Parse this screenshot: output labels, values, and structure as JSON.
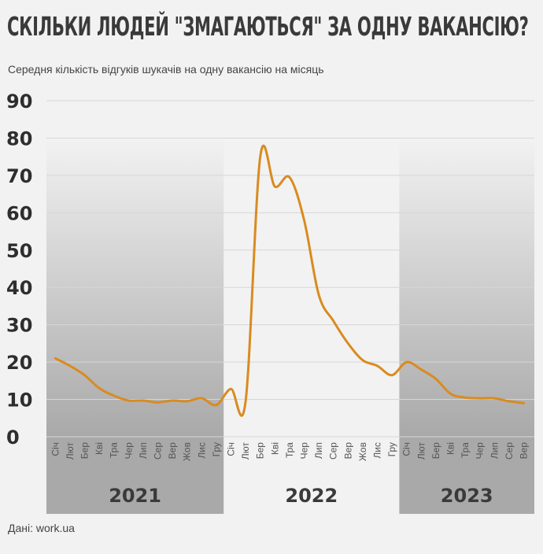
{
  "title": "СКІЛЬКИ ЛЮДЕЙ \"ЗМАГАЮТЬСЯ\" ЗА ОДНУ ВАКАНСІЮ?",
  "subtitle": "Середня кількість відгуків шукачів на одну вакансію на місяць",
  "source": "Дані: work.ua",
  "colors": {
    "line": "#d98b1f",
    "background": "#f2f2f2",
    "shade_dark": "#a9a9a9",
    "shade_light": "#f2f2f2"
  },
  "chart_data": {
    "type": "line",
    "title": "СКІЛЬКИ ЛЮДЕЙ \"ЗМАГАЮТЬСЯ\" ЗА ОДНУ ВАКАНСІЮ?",
    "subtitle": "Середня кількість відгуків шукачів на одну вакансію на місяць",
    "ylim": [
      0,
      90
    ],
    "yticks": [
      0,
      10,
      20,
      30,
      40,
      50,
      60,
      70,
      80,
      90
    ],
    "grid": true,
    "years": [
      {
        "label": "2021",
        "months": 12,
        "shaded": true
      },
      {
        "label": "2022",
        "months": 12,
        "shaded": false
      },
      {
        "label": "2023",
        "months": 9,
        "shaded": true
      }
    ],
    "categories": [
      "Січ",
      "Лют",
      "Бер",
      "Кві",
      "Тра",
      "Чер",
      "Лип",
      "Сер",
      "Вер",
      "Жов",
      "Лис",
      "Гру",
      "Січ",
      "Лют",
      "Бер",
      "Кві",
      "Тра",
      "Чер",
      "Лип",
      "Сер",
      "Вер",
      "Жов",
      "Лис",
      "Гру",
      "Січ",
      "Лют",
      "Бер",
      "Кві",
      "Тра",
      "Чер",
      "Лип",
      "Сер",
      "Вер"
    ],
    "series": [
      {
        "values": [
          21,
          19,
          16.5,
          13,
          11,
          9.7,
          9.7,
          9.2,
          9.7,
          9.5,
          10.3,
          8.5,
          12.8,
          9.5,
          75,
          67,
          69.5,
          58,
          38,
          31,
          25,
          20.5,
          19,
          16.5,
          20,
          18,
          15.5,
          11.5,
          10.5,
          10.3,
          10.3,
          9.5,
          9
        ]
      }
    ]
  }
}
